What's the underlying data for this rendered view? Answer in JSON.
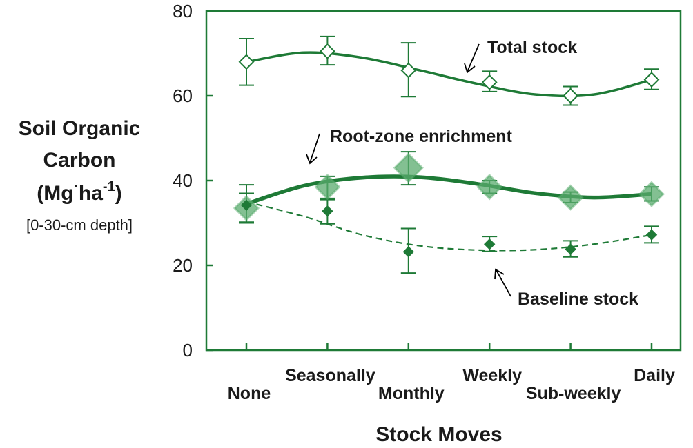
{
  "chart_data": {
    "type": "line",
    "title": "",
    "xlabel": "Stock Moves",
    "ylabel": {
      "line1": "Soil Organic",
      "line2": "Carbon",
      "line3_pre": "(Mg",
      "line3_dot": "·",
      "line3_mid": "ha",
      "line3_sup": "-1",
      "line3_post": ")",
      "line4": "[0-30-cm depth]"
    },
    "ylim": [
      0,
      80
    ],
    "yticks": [
      "0",
      "20",
      "40",
      "60",
      "80"
    ],
    "yticks_values": [
      0,
      20,
      40,
      60,
      80
    ],
    "categories": [
      "None",
      "Seasonally",
      "Monthly",
      "Weekly",
      "Sub-weekly",
      "Daily"
    ],
    "grid": false,
    "series": [
      {
        "name": "Total stock",
        "marker": "open-diamond",
        "line_style": "solid",
        "values": [
          68,
          70.5,
          66,
          63.2,
          60,
          63.8
        ],
        "err_low": [
          62.5,
          67.3,
          59.8,
          61,
          57.8,
          61.5
        ],
        "err_high": [
          73.5,
          74,
          72.5,
          65.8,
          62.2,
          66.3
        ],
        "fit": [
          68,
          70.2,
          69,
          66,
          62.8,
          60.3,
          60.3,
          63.8
        ]
      },
      {
        "name": "Root-zone enrichment",
        "marker": "large-translucent-diamond",
        "line_style": "thick-solid",
        "values": [
          33.5,
          38.5,
          43,
          38.5,
          36,
          36.8
        ],
        "err_low": [
          30.2,
          35.8,
          39,
          37,
          34.8,
          35.2
        ],
        "err_high": [
          37,
          41,
          46.8,
          40,
          37.3,
          38.5
        ],
        "fit": [
          34.5,
          38.8,
          40.7,
          40.8,
          39.2,
          37,
          36,
          36.8
        ]
      },
      {
        "name": "Baseline stock",
        "marker": "small-filled-diamond",
        "line_style": "dashed",
        "values": [
          34.2,
          32.8,
          23.2,
          25,
          23.8,
          27.2
        ],
        "err_low": [
          30,
          29.8,
          18.2,
          23.3,
          22,
          25.3
        ],
        "err_high": [
          39,
          35.5,
          28.7,
          26.8,
          25.8,
          29.2
        ],
        "fit": [
          35,
          31.5,
          27.2,
          24.6,
          23.6,
          23.7,
          25,
          27.2
        ]
      }
    ],
    "colors": {
      "line": "#1e7a36",
      "marker_fill_light": "#5aab6e",
      "marker_fill_dark": "#1e7a36",
      "arrow": "#000000"
    }
  }
}
